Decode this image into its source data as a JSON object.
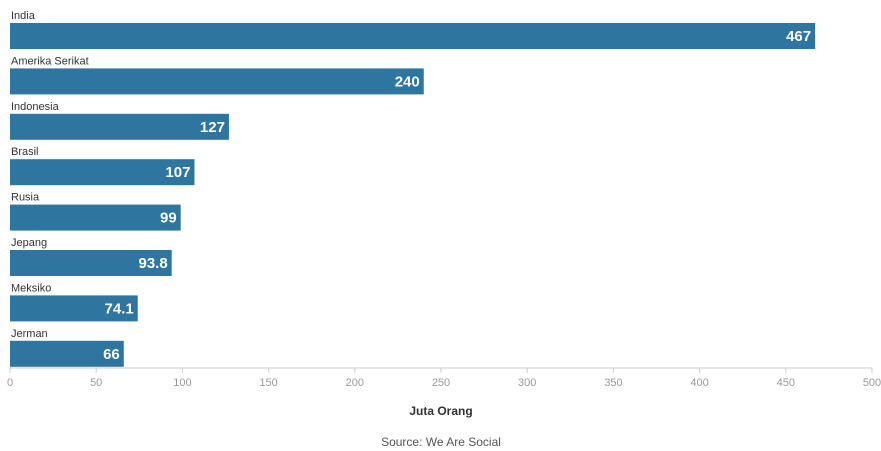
{
  "chart_data": {
    "type": "bar",
    "orientation": "horizontal",
    "categories": [
      "India",
      "Amerika Serikat",
      "Indonesia",
      "Brasil",
      "Rusia",
      "Jepang",
      "Meksiko",
      "Jerman"
    ],
    "values": [
      467,
      240,
      127,
      107,
      99,
      93.8,
      74.1,
      66
    ],
    "value_labels": [
      "467",
      "240",
      "127",
      "107",
      "99",
      "93.8",
      "74.1",
      "66"
    ],
    "xlabel": "Juta Orang",
    "xlim": [
      0,
      500
    ],
    "x_ticks": [
      0,
      50,
      100,
      150,
      200,
      250,
      300,
      350,
      400,
      450,
      500
    ],
    "grid": false,
    "bar_color": "#2e75a0",
    "source": "Source: We Are Social"
  }
}
